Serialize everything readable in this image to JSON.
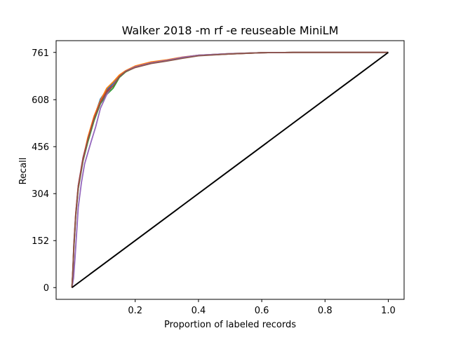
{
  "chart_data": {
    "type": "line",
    "title": "Walker 2018 -m rf -e reuseable MiniLM",
    "xlabel": "Proportion of labeled records",
    "ylabel": "Recall",
    "xlim": [
      -0.05,
      1.05
    ],
    "ylim": [
      -38,
      799
    ],
    "x_ticks": [
      {
        "value": 0.2,
        "label": "0.2"
      },
      {
        "value": 0.4,
        "label": "0.4"
      },
      {
        "value": 0.6,
        "label": "0.6"
      },
      {
        "value": 0.8,
        "label": "0.8"
      },
      {
        "value": 1.0,
        "label": "1.0"
      }
    ],
    "y_ticks": [
      {
        "value": 0,
        "label": "0"
      },
      {
        "value": 152,
        "label": "152"
      },
      {
        "value": 304,
        "label": "304"
      },
      {
        "value": 456,
        "label": "456"
      },
      {
        "value": 608,
        "label": "608"
      },
      {
        "value": 761,
        "label": "761"
      }
    ],
    "grid": false,
    "legend": "none",
    "series": [
      {
        "color": "#1f77b4",
        "x": [
          0,
          0.003,
          0.006,
          0.012,
          0.02,
          0.035,
          0.05,
          0.07,
          0.09,
          0.11,
          0.13,
          0.15,
          0.17,
          0.2,
          0.25,
          0.3,
          0.35,
          0.4,
          0.5,
          0.6,
          0.7,
          0.8,
          0.9,
          1.0
        ],
        "y": [
          0,
          60,
          140,
          240,
          330,
          420,
          480,
          550,
          610,
          640,
          660,
          685,
          700,
          715,
          728,
          735,
          745,
          752,
          757,
          760,
          761,
          761,
          761,
          761
        ]
      },
      {
        "color": "#ff7f0e",
        "x": [
          0,
          0.003,
          0.006,
          0.012,
          0.02,
          0.035,
          0.05,
          0.07,
          0.09,
          0.11,
          0.13,
          0.15,
          0.17,
          0.2,
          0.25,
          0.3,
          0.35,
          0.4,
          0.5,
          0.6,
          0.7,
          0.8,
          0.9,
          1.0
        ],
        "y": [
          0,
          55,
          130,
          235,
          325,
          415,
          485,
          555,
          605,
          645,
          665,
          688,
          702,
          717,
          730,
          737,
          746,
          752,
          757,
          760,
          761,
          761,
          761,
          761
        ]
      },
      {
        "color": "#2ca02c",
        "x": [
          0,
          0.003,
          0.006,
          0.012,
          0.02,
          0.035,
          0.05,
          0.07,
          0.09,
          0.11,
          0.13,
          0.15,
          0.17,
          0.2,
          0.25,
          0.3,
          0.35,
          0.4,
          0.5,
          0.6,
          0.7,
          0.8,
          0.9,
          1.0
        ],
        "y": [
          0,
          50,
          125,
          230,
          320,
          410,
          470,
          540,
          595,
          625,
          645,
          680,
          698,
          713,
          726,
          734,
          743,
          751,
          756,
          760,
          761,
          761,
          761,
          761
        ]
      },
      {
        "color": "#d62728",
        "x": [
          0,
          0.003,
          0.006,
          0.012,
          0.02,
          0.035,
          0.05,
          0.07,
          0.09,
          0.11,
          0.13,
          0.15,
          0.17,
          0.2,
          0.25,
          0.3,
          0.35,
          0.4,
          0.5,
          0.6,
          0.7,
          0.8,
          0.9,
          1.0
        ],
        "y": [
          0,
          58,
          135,
          238,
          328,
          418,
          478,
          548,
          600,
          635,
          655,
          683,
          700,
          714,
          727,
          735,
          744,
          751,
          756,
          760,
          761,
          761,
          761,
          761
        ]
      },
      {
        "color": "#9467bd",
        "x": [
          0,
          0.005,
          0.01,
          0.015,
          0.02,
          0.03,
          0.04,
          0.06,
          0.075,
          0.09,
          0.11,
          0.13,
          0.15,
          0.17,
          0.2,
          0.25,
          0.3,
          0.35,
          0.4,
          0.5,
          0.6,
          0.7,
          0.8,
          0.9,
          1.0
        ],
        "y": [
          0,
          30,
          100,
          180,
          260,
          340,
          400,
          470,
          520,
          580,
          625,
          655,
          682,
          700,
          714,
          727,
          735,
          745,
          752,
          757,
          760,
          761,
          761,
          761,
          761
        ]
      },
      {
        "color": "#8c564b",
        "x": [
          0,
          0.003,
          0.006,
          0.012,
          0.02,
          0.035,
          0.05,
          0.07,
          0.09,
          0.11,
          0.13,
          0.15,
          0.17,
          0.2,
          0.25,
          0.3,
          0.35,
          0.4,
          0.5,
          0.6,
          0.7,
          0.8,
          0.9,
          1.0
        ],
        "y": [
          0,
          52,
          128,
          232,
          322,
          412,
          476,
          545,
          598,
          632,
          652,
          682,
          699,
          712,
          725,
          733,
          742,
          750,
          756,
          760,
          761,
          761,
          761,
          761
        ]
      },
      {
        "color": "#000000",
        "x": [
          0,
          1.0
        ],
        "y": [
          0,
          761
        ]
      }
    ]
  }
}
